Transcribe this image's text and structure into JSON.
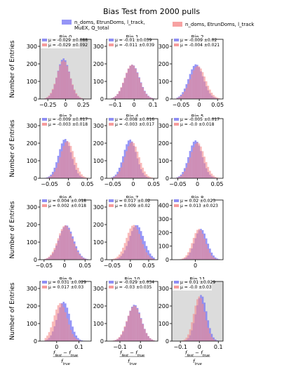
{
  "figure": {
    "title": "Bias Test from 2000 pulls",
    "ylabel": "Number of Entries",
    "legend": [
      {
        "label_lines": [
          "n_doms, EtrunDoms, l_track,",
          "MuEX, Q_total"
        ],
        "color": "#7b7bf5"
      },
      {
        "label_lines": [
          "n_doms, EtrunDoms, l_track"
        ],
        "color": "#f58b8b"
      }
    ]
  },
  "chart_data": {
    "type": "bar",
    "xlabel": "(f_fest − f_true) / f_true",
    "series_colors": [
      "#7b7bf5",
      "#f58b8b"
    ],
    "subplots": [
      {
        "title": "Bin 0",
        "bg": "gray",
        "xlim": [
          -0.36,
          0.36
        ],
        "xticks": [
          -0.25,
          0,
          0.25
        ],
        "ylim": [
          0,
          340
        ],
        "yticks": [
          0,
          100,
          200,
          300
        ],
        "stats": [
          [
            "-0.029",
            "0.088"
          ],
          [
            "-0.029",
            "0.092"
          ]
        ]
      },
      {
        "title": "Bin 1",
        "bg": "white",
        "xlim": [
          -0.145,
          0.125
        ],
        "xticks": [
          -0.1,
          0,
          0.1
        ],
        "ylim": [
          0,
          340
        ],
        "yticks": [
          0,
          100,
          200,
          300
        ],
        "stats": [
          [
            "-0.01",
            "0.039"
          ],
          [
            "-0.011",
            "0.039"
          ]
        ]
      },
      {
        "title": "Bin 2",
        "bg": "white",
        "xlim": [
          -0.075,
          0.065
        ],
        "xticks": [
          -0.05,
          0,
          0.05
        ],
        "ylim": [
          0,
          340
        ],
        "yticks": [
          0,
          100,
          200,
          300
        ],
        "stats": [
          [
            "-0.009",
            "0.02"
          ],
          [
            "-0.004",
            "0.021"
          ]
        ]
      },
      {
        "title": "Bin 3",
        "bg": "white",
        "xlim": [
          -0.075,
          0.06
        ],
        "xticks": [
          -0.05,
          0,
          0.05
        ],
        "ylim": [
          0,
          340
        ],
        "yticks": [
          0,
          100,
          200,
          300
        ],
        "stats": [
          [
            "-0.009",
            "0.017"
          ],
          [
            "-0.003",
            "0.018"
          ]
        ]
      },
      {
        "title": "Bin 4",
        "bg": "white",
        "xlim": [
          -0.065,
          0.06
        ],
        "xticks": [
          -0.05,
          0,
          0.05
        ],
        "ylim": [
          0,
          340
        ],
        "yticks": [
          0,
          100,
          200,
          300
        ],
        "stats": [
          [
            "-0.008",
            "0.016"
          ],
          [
            "-0.003",
            "0.017"
          ]
        ]
      },
      {
        "title": "Bin 5",
        "bg": "white",
        "xlim": [
          -0.065,
          0.065
        ],
        "xticks": [
          -0.05,
          0,
          0.05
        ],
        "ylim": [
          0,
          340
        ],
        "yticks": [
          0,
          100,
          200,
          300
        ],
        "stats": [
          [
            "-0.005",
            "0.017"
          ],
          [
            "-0.0",
            "0.018"
          ]
        ]
      },
      {
        "title": "Bin 6",
        "bg": "white",
        "xlim": [
          -0.06,
          0.065
        ],
        "xticks": [
          -0.05,
          0,
          0.05
        ],
        "ylim": [
          0,
          340
        ],
        "yticks": [
          0,
          100,
          200,
          300
        ],
        "stats": [
          [
            "0.004",
            "0.018"
          ],
          [
            "0.002",
            "0.018"
          ]
        ]
      },
      {
        "title": "Bin 7",
        "bg": "white",
        "xlim": [
          -0.065,
          0.075
        ],
        "xticks": [
          -0.05,
          0,
          0.05
        ],
        "ylim": [
          0,
          340
        ],
        "yticks": [
          0,
          100,
          200,
          300
        ],
        "stats": [
          [
            "0.017",
            "0.02"
          ],
          [
            "0.009",
            "0.02"
          ]
        ]
      },
      {
        "title": "Bin 8",
        "bg": "white",
        "xlim": [
          -0.085,
          0.1
        ],
        "xticks": [
          0
        ],
        "ylim": [
          0,
          440
        ],
        "yticks": [
          0,
          100,
          200,
          300,
          400
        ],
        "stats": [
          [
            "0.02",
            "0.023"
          ],
          [
            "0.013",
            "0.023"
          ]
        ]
      },
      {
        "title": "Bin 9",
        "bg": "white",
        "xlim": [
          -0.075,
          0.155
        ],
        "xticks": [
          0,
          0.1
        ],
        "ylim": [
          0,
          340
        ],
        "yticks": [
          0,
          100,
          200,
          300
        ],
        "stats": [
          [
            "0.031",
            "0.029"
          ],
          [
            "0.017",
            "0.03"
          ]
        ]
      },
      {
        "title": "Bin 10",
        "bg": "white",
        "xlim": [
          -0.165,
          0.085
        ],
        "xticks": [
          -0.1,
          0
        ],
        "ylim": [
          0,
          340
        ],
        "yticks": [
          0,
          100,
          200,
          300
        ],
        "stats": [
          [
            "-0.029",
            "0.034"
          ],
          [
            "-0.03",
            "0.035"
          ]
        ]
      },
      {
        "title": "Bin 11",
        "bg": "gray",
        "xlim": [
          -0.145,
          0.125
        ],
        "xticks": [
          -0.1,
          0,
          0.1
        ],
        "ylim": [
          0,
          340
        ],
        "yticks": [
          0,
          100,
          200,
          300
        ],
        "stats": [
          [
            "0.01",
            "0.029"
          ],
          [
            "-0.0",
            "0.03"
          ]
        ]
      }
    ]
  }
}
